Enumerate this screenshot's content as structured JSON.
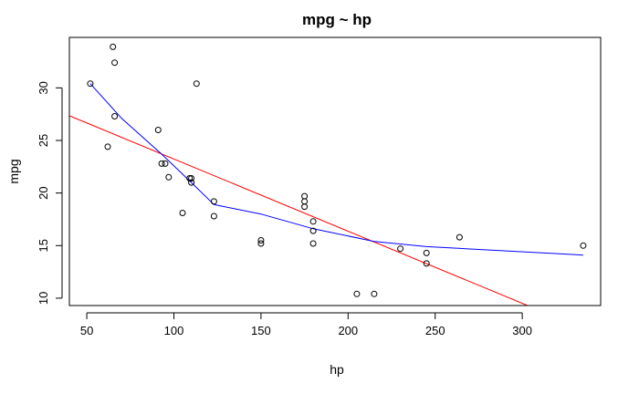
{
  "chart_data": {
    "type": "scatter",
    "title": "mpg ~ hp",
    "xlabel": "hp",
    "ylabel": "mpg",
    "xlim": [
      40,
      345
    ],
    "ylim": [
      9.3,
      34.8
    ],
    "x_ticks": [
      50,
      100,
      150,
      200,
      250,
      300
    ],
    "y_ticks": [
      10,
      15,
      20,
      25,
      30
    ],
    "grid": false,
    "points": [
      {
        "x": 52,
        "y": 30.4
      },
      {
        "x": 62,
        "y": 24.4
      },
      {
        "x": 65,
        "y": 33.9
      },
      {
        "x": 66,
        "y": 32.4
      },
      {
        "x": 66,
        "y": 27.3
      },
      {
        "x": 91,
        "y": 26.0
      },
      {
        "x": 93,
        "y": 22.8
      },
      {
        "x": 95,
        "y": 22.8
      },
      {
        "x": 97,
        "y": 21.5
      },
      {
        "x": 105,
        "y": 18.1
      },
      {
        "x": 109,
        "y": 21.4
      },
      {
        "x": 110,
        "y": 21.4
      },
      {
        "x": 110,
        "y": 21.0
      },
      {
        "x": 113,
        "y": 30.4
      },
      {
        "x": 123,
        "y": 19.2
      },
      {
        "x": 123,
        "y": 17.8
      },
      {
        "x": 150,
        "y": 15.5
      },
      {
        "x": 150,
        "y": 15.2
      },
      {
        "x": 175,
        "y": 19.7
      },
      {
        "x": 175,
        "y": 19.2
      },
      {
        "x": 175,
        "y": 18.7
      },
      {
        "x": 180,
        "y": 17.3
      },
      {
        "x": 180,
        "y": 16.4
      },
      {
        "x": 180,
        "y": 15.2
      },
      {
        "x": 205,
        "y": 10.4
      },
      {
        "x": 215,
        "y": 10.4
      },
      {
        "x": 230,
        "y": 14.7
      },
      {
        "x": 245,
        "y": 14.3
      },
      {
        "x": 245,
        "y": 13.3
      },
      {
        "x": 264,
        "y": 15.8
      },
      {
        "x": 335,
        "y": 15.0
      }
    ],
    "series": [
      {
        "type": "line",
        "color": "#ff0000",
        "points": [
          {
            "x": 40,
            "y": 27.35
          },
          {
            "x": 303,
            "y": 9.3
          }
        ]
      },
      {
        "type": "line",
        "color": "#0000ff",
        "points": [
          {
            "x": 52,
            "y": 30.4
          },
          {
            "x": 70,
            "y": 27.1
          },
          {
            "x": 93,
            "y": 23.7
          },
          {
            "x": 110,
            "y": 21.0
          },
          {
            "x": 123,
            "y": 18.9
          },
          {
            "x": 150,
            "y": 18.0
          },
          {
            "x": 180,
            "y": 16.6
          },
          {
            "x": 215,
            "y": 15.4
          },
          {
            "x": 245,
            "y": 14.9
          },
          {
            "x": 335,
            "y": 14.1
          }
        ]
      }
    ],
    "colors": {
      "points": "#000000",
      "fit_linear": "#ff0000",
      "fit_smooth": "#0000ff"
    }
  }
}
